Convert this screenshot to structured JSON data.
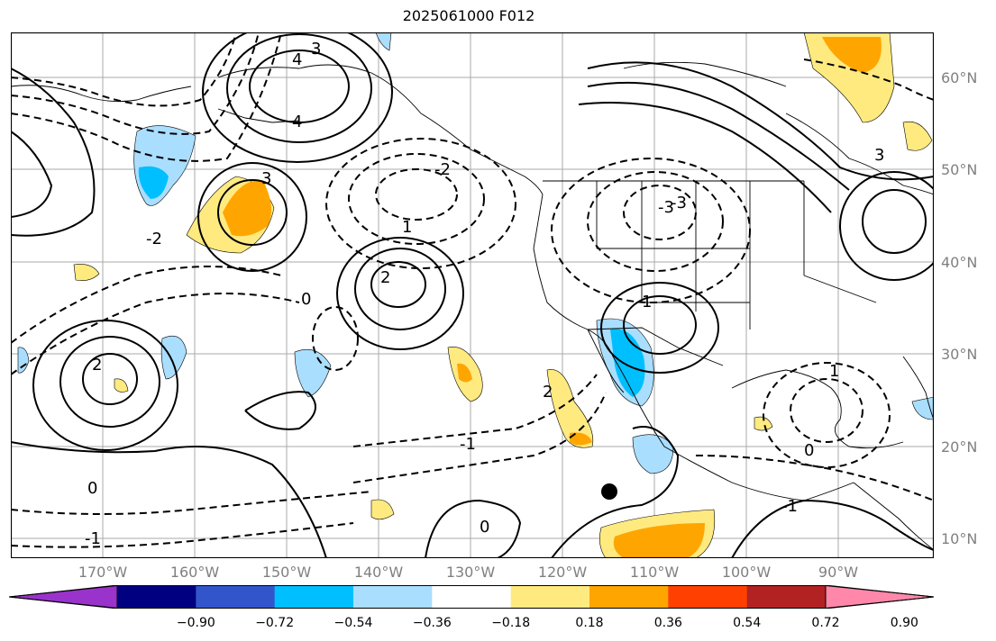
{
  "title": "2025061000 F012",
  "map": {
    "lon_range": [
      "-180",
      "-80"
    ],
    "lat_range": [
      "7",
      "65"
    ],
    "longitude_labels": [
      "170°W",
      "160°W",
      "150°W",
      "140°W",
      "130°W",
      "120°W",
      "110°W",
      "100°W",
      "90°W"
    ],
    "latitude_labels": [
      "60°N",
      "50°N",
      "40°N",
      "30°N",
      "20°N",
      "10°N"
    ],
    "contour_labels": [
      "3",
      "4",
      "3",
      "2",
      "1",
      "0",
      "-1",
      "-2",
      "-3",
      "2",
      "0",
      "-1",
      "1",
      "2",
      "-1",
      "0",
      "3",
      "4",
      "0",
      "1",
      "-2",
      "-3"
    ],
    "marker": "black-dot"
  },
  "colorbar": {
    "labels": [
      "−0.90",
      "−0.72",
      "−0.54",
      "−0.36",
      "−0.18",
      "0.18",
      "0.36",
      "0.54",
      "0.72",
      "0.90"
    ],
    "colors": [
      "#9933cc",
      "#000080",
      "#3355cc",
      "#00bfff",
      "#aadeff",
      "#ffffff",
      "#ffea80",
      "#ffa500",
      "#ff4000",
      "#b22222",
      "#ff88aa"
    ]
  }
}
